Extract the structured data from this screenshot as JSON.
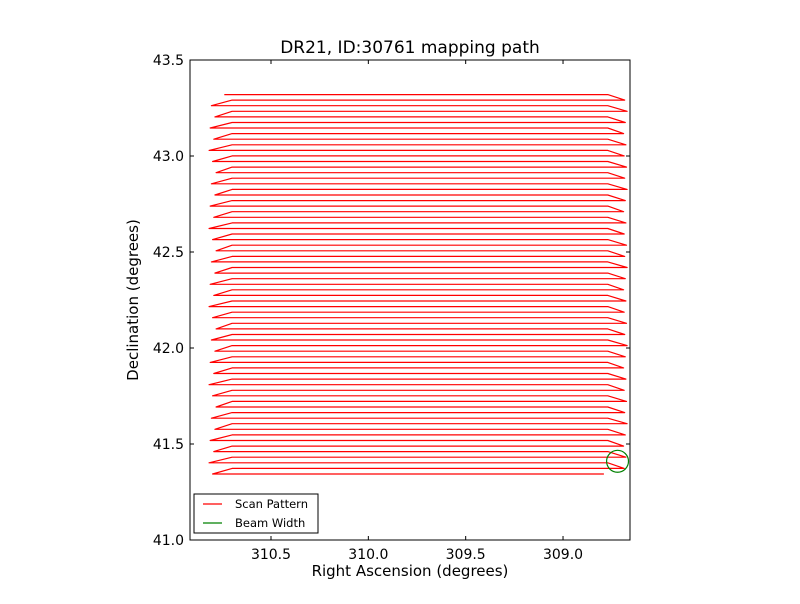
{
  "chart_data": {
    "type": "line",
    "title": "DR21, ID:30761 mapping path",
    "xlabel": "Right Ascension (degrees)",
    "ylabel": "Declination (degrees)",
    "xlim": [
      310.916,
      308.656
    ],
    "ylim": [
      41.0,
      43.5
    ],
    "x_ticks": [
      310.5,
      310.0,
      309.5,
      309.0
    ],
    "x_tick_labels": [
      "310.5",
      "310.0",
      "309.5",
      "309.0"
    ],
    "y_ticks": [
      41.0,
      41.5,
      42.0,
      42.5,
      43.0,
      43.5
    ],
    "y_tick_labels": [
      "41.0",
      "41.5",
      "42.0",
      "42.5",
      "43.0",
      "43.5"
    ],
    "grid": false,
    "legend": {
      "placement": "lower-left",
      "entries": [
        {
          "label": "Scan Pattern",
          "color": "#ff0000"
        },
        {
          "label": "Beam Width",
          "color": "#008000"
        }
      ]
    },
    "series": [
      {
        "name": "Scan Pattern",
        "color": "#ff0000",
        "kind": "boustrophedon raster",
        "row_count": 69,
        "dec_top": 43.32,
        "dec_bottom": 41.344,
        "ra_first_start": 310.74,
        "ra_left_inner": 310.7,
        "ra_left_outer": 310.8,
        "ra_right_inner": 308.77,
        "ra_right_outer": 308.68,
        "ra_last_end": 308.79
      },
      {
        "name": "Beam Width",
        "color": "#008000",
        "kind": "circle",
        "center_ra": 308.72,
        "center_dec": 41.41,
        "radius_deg": 0.057
      }
    ]
  }
}
